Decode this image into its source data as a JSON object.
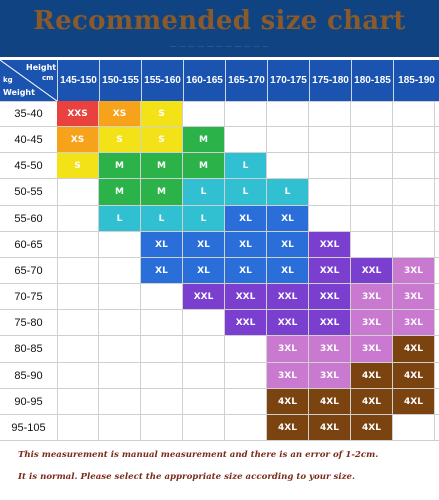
{
  "title": "Recommended size chart",
  "subtitle": "— — — — — — — — — — —",
  "corner": {
    "height_label": "Height",
    "cm_label": "cm",
    "kg_label": "kg",
    "weight_label": "Weight"
  },
  "heights": [
    "145-150",
    "150-155",
    "155-160",
    "160-165",
    "165-170",
    "170-175",
    "175-180",
    "180-185",
    "185-190"
  ],
  "weights": [
    "35-40",
    "40-45",
    "45-50",
    "50-55",
    "55-60",
    "60-65",
    "65-70",
    "70-75",
    "75-80",
    "80-85",
    "85-90",
    "90-95",
    "95-105"
  ],
  "sizes": [
    [
      "XXS",
      "XS",
      "S",
      "",
      "",
      "",
      "",
      "",
      ""
    ],
    [
      "XS",
      "S",
      "S",
      "M",
      "",
      "",
      "",
      "",
      ""
    ],
    [
      "S",
      "M",
      "M",
      "M",
      "L",
      "",
      "",
      "",
      ""
    ],
    [
      "",
      "M",
      "M",
      "L",
      "L",
      "L",
      "",
      "",
      ""
    ],
    [
      "",
      "L",
      "L",
      "L",
      "XL",
      "XL",
      "",
      "",
      ""
    ],
    [
      "",
      "",
      "XL",
      "XL",
      "XL",
      "XL",
      "XXL",
      "",
      ""
    ],
    [
      "",
      "",
      "XL",
      "XL",
      "XL",
      "XL",
      "XXL",
      "XXL",
      "3XL"
    ],
    [
      "",
      "",
      "",
      "XXL",
      "XXL",
      "XXL",
      "XXL",
      "3XL",
      "3XL"
    ],
    [
      "",
      "",
      "",
      "",
      "XXL",
      "XXL",
      "XXL",
      "3XL",
      "3XL"
    ],
    [
      "",
      "",
      "",
      "",
      "",
      "3XL",
      "3XL",
      "3XL",
      "4XL"
    ],
    [
      "",
      "",
      "",
      "",
      "",
      "3XL",
      "3XL",
      "4XL",
      "4XL"
    ],
    [
      "",
      "",
      "",
      "",
      "",
      "4XL",
      "4XL",
      "4XL",
      "4XL"
    ],
    [
      "",
      "",
      "",
      "",
      "",
      "4XL",
      "4XL",
      "4XL",
      ""
    ]
  ],
  "size_colors": {
    "XXS": "#e9413d",
    "XS": "#f7a21b",
    "S": "#f4e219",
    "M": "#2bb34a",
    "L": "#31c0d2",
    "XL": "#2a6fd9",
    "XXL": "#7a3fcf",
    "3XL": "#c97ad0",
    "4XL": "#7a4310"
  },
  "colors": {
    "title_bar": "#0f4382",
    "header_row": "#1a53b0",
    "title_text": "#8a5a2b",
    "footer_text": "#7b2a1a"
  },
  "footer": {
    "line1": "This measurement is manual measurement and there is an error of 1-2cm.",
    "line2": "It is normal. Please select the appropriate size according to your size."
  }
}
